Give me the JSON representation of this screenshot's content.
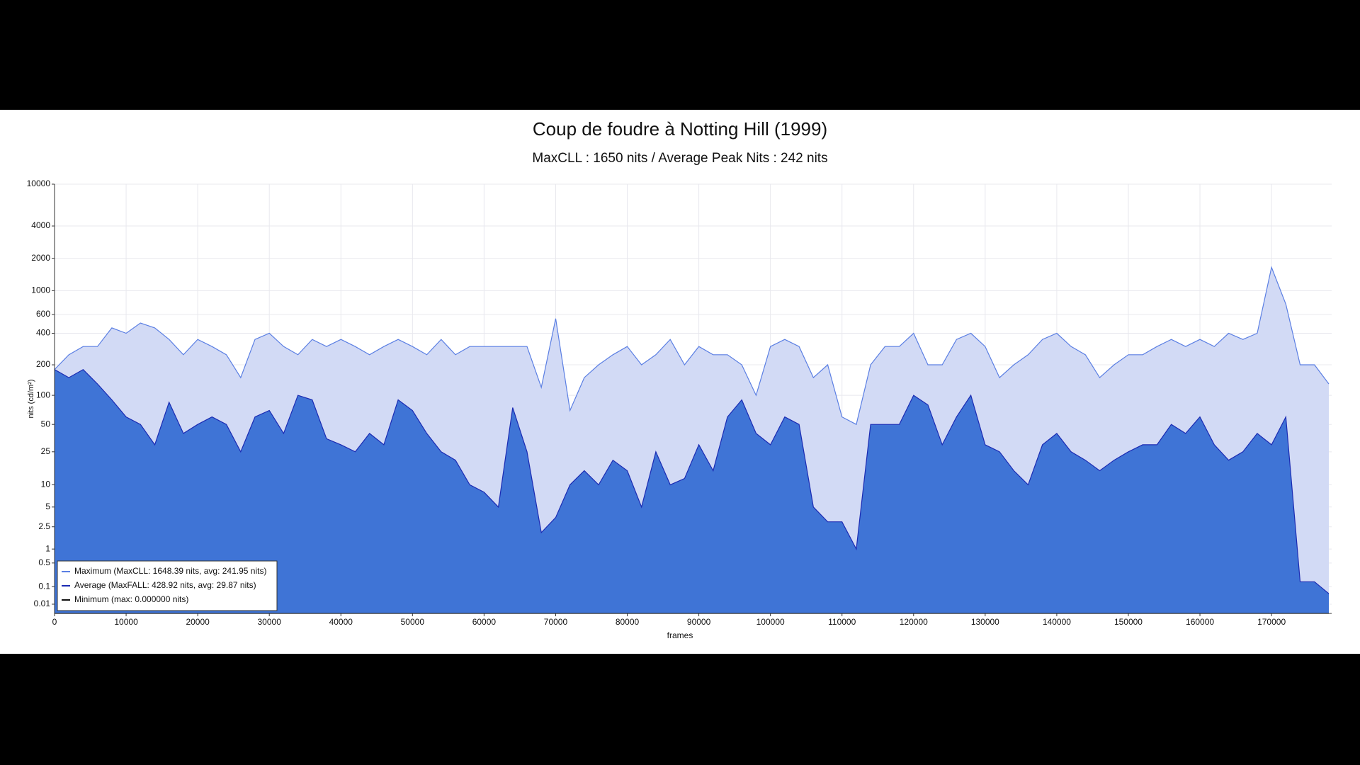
{
  "chart_data": {
    "type": "area",
    "title": "Coup de foudre à Notting Hill (1999)",
    "subtitle": "MaxCLL : 1650 nits / Average Peak Nits : 242 nits",
    "xlabel": "frames",
    "ylabel": "nits (cd/m²)",
    "yscale": "pq",
    "grid": true,
    "legend": "lower left",
    "xlim": [
      0,
      178400
    ],
    "ylim": [
      0,
      10000
    ],
    "xticks": [
      0,
      10000,
      20000,
      30000,
      40000,
      50000,
      60000,
      70000,
      80000,
      90000,
      100000,
      110000,
      120000,
      130000,
      140000,
      150000,
      160000,
      170000
    ],
    "yticks": [
      0.01,
      0.1,
      0.5,
      1,
      2.5,
      5,
      10,
      25,
      50,
      100,
      200,
      400,
      600,
      1000,
      2000,
      4000,
      10000
    ],
    "x": [
      0,
      2000,
      4000,
      6000,
      8000,
      10000,
      12000,
      14000,
      16000,
      18000,
      20000,
      22000,
      24000,
      26000,
      28000,
      30000,
      32000,
      34000,
      36000,
      38000,
      40000,
      42000,
      44000,
      46000,
      48000,
      50000,
      52000,
      54000,
      56000,
      58000,
      60000,
      62000,
      64000,
      66000,
      68000,
      70000,
      72000,
      74000,
      76000,
      78000,
      80000,
      82000,
      84000,
      86000,
      88000,
      90000,
      92000,
      94000,
      96000,
      98000,
      100000,
      102000,
      104000,
      106000,
      108000,
      110000,
      112000,
      114000,
      116000,
      118000,
      120000,
      122000,
      124000,
      126000,
      128000,
      130000,
      132000,
      134000,
      136000,
      138000,
      140000,
      142000,
      144000,
      146000,
      148000,
      150000,
      152000,
      154000,
      156000,
      158000,
      160000,
      162000,
      164000,
      166000,
      168000,
      170000,
      172000,
      174000,
      176000,
      178000
    ],
    "series": [
      {
        "name": "Maximum (MaxCLL: 1648.39 nits, avg: 241.95 nits)",
        "color": "#5b7fe3",
        "fill": "#d2daf5",
        "values": [
          180,
          250,
          300,
          300,
          450,
          400,
          500,
          450,
          350,
          250,
          350,
          300,
          250,
          150,
          350,
          400,
          300,
          250,
          350,
          300,
          350,
          300,
          250,
          300,
          350,
          300,
          250,
          350,
          250,
          300,
          300,
          300,
          300,
          300,
          120,
          550,
          70,
          150,
          200,
          250,
          300,
          200,
          250,
          350,
          200,
          300,
          250,
          250,
          200,
          100,
          300,
          350,
          300,
          150,
          200,
          60,
          50,
          200,
          300,
          300,
          400,
          200,
          200,
          350,
          400,
          300,
          150,
          200,
          250,
          350,
          400,
          300,
          250,
          150,
          200,
          250,
          250,
          300,
          350,
          300,
          350,
          300,
          400,
          350,
          400,
          1648,
          750,
          200,
          200,
          130
        ]
      },
      {
        "name": "Average (MaxFALL: 428.92 nits, avg: 29.87 nits)",
        "color": "#1b2bb3",
        "fill": "#3f74d6",
        "values": [
          180,
          150,
          180,
          130,
          90,
          60,
          50,
          30,
          85,
          40,
          50,
          60,
          50,
          25,
          60,
          70,
          40,
          100,
          90,
          35,
          30,
          25,
          40,
          30,
          90,
          70,
          40,
          25,
          20,
          10,
          8,
          5,
          75,
          25,
          2,
          3.5,
          10,
          15,
          10,
          20,
          15,
          5,
          25,
          10,
          12,
          30,
          15,
          60,
          90,
          40,
          30,
          60,
          50,
          5,
          3,
          3,
          1,
          50,
          50,
          50,
          100,
          80,
          30,
          60,
          100,
          30,
          25,
          15,
          10,
          30,
          40,
          25,
          20,
          15,
          20,
          25,
          30,
          30,
          50,
          40,
          60,
          30,
          20,
          25,
          40,
          30,
          60,
          0.15,
          0.15,
          0.05
        ]
      },
      {
        "name": "Minimum (max: 0.000000 nits)",
        "color": "#111111",
        "values": [
          0,
          0,
          0,
          0,
          0,
          0,
          0,
          0,
          0,
          0,
          0,
          0,
          0,
          0,
          0,
          0,
          0,
          0,
          0,
          0,
          0,
          0,
          0,
          0,
          0,
          0,
          0,
          0,
          0,
          0,
          0,
          0,
          0,
          0,
          0,
          0,
          0,
          0,
          0,
          0,
          0,
          0,
          0,
          0,
          0,
          0,
          0,
          0,
          0,
          0,
          0,
          0,
          0,
          0,
          0,
          0,
          0,
          0,
          0,
          0,
          0,
          0,
          0,
          0,
          0,
          0,
          0,
          0,
          0,
          0,
          0,
          0,
          0,
          0,
          0,
          0,
          0,
          0,
          0,
          0,
          0,
          0,
          0,
          0,
          0,
          0,
          0,
          0,
          0,
          0
        ]
      }
    ]
  }
}
